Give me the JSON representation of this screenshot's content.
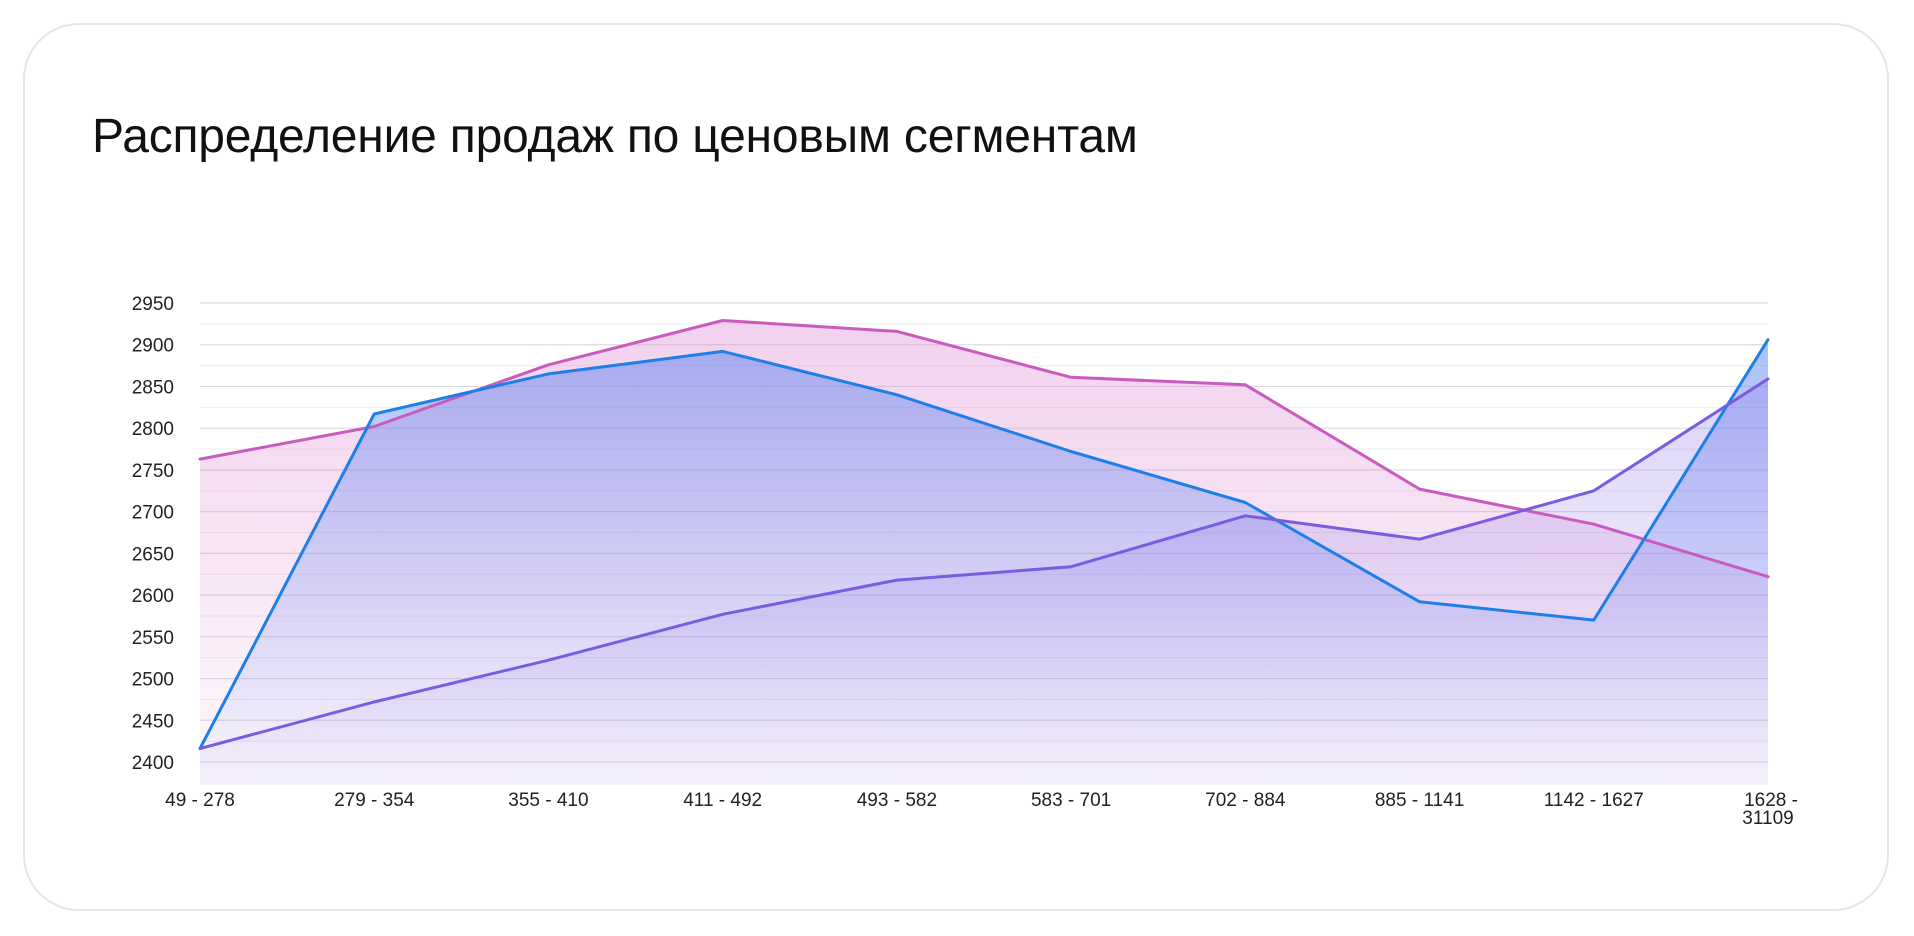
{
  "chart_data": {
    "type": "area",
    "title": "Распределение продаж по ценовым сегментам",
    "xlabel": "",
    "ylabel": "",
    "categories": [
      "49 - 278",
      "279 - 354",
      "355 - 410",
      "411 - 492",
      "493 - 582",
      "583 - 701",
      "702 - 884",
      "885 - 1141",
      "1142 - 1627",
      "1628 - 31109"
    ],
    "yticks": [
      "2400",
      "2450",
      "2500",
      "2550",
      "2600",
      "2650",
      "2700",
      "2750",
      "2800",
      "2850",
      "2900",
      "2950"
    ],
    "ylim": [
      2400,
      2950
    ],
    "grid": true,
    "legend": "none",
    "series": [
      {
        "color": "#c95bbf",
        "values": [
          2763,
          2802,
          2876,
          2929,
          2916,
          2861,
          2852,
          2727,
          2685,
          2622
        ]
      },
      {
        "color": "#1f7fe8",
        "values": [
          2416,
          2817,
          2865,
          2892,
          2840,
          2772,
          2711,
          2592,
          2570,
          2906
        ]
      },
      {
        "color": "#7a5ce0",
        "values": [
          2416,
          2472,
          2522,
          2577,
          2618,
          2634,
          2695,
          2667,
          2725,
          2859
        ]
      }
    ]
  }
}
